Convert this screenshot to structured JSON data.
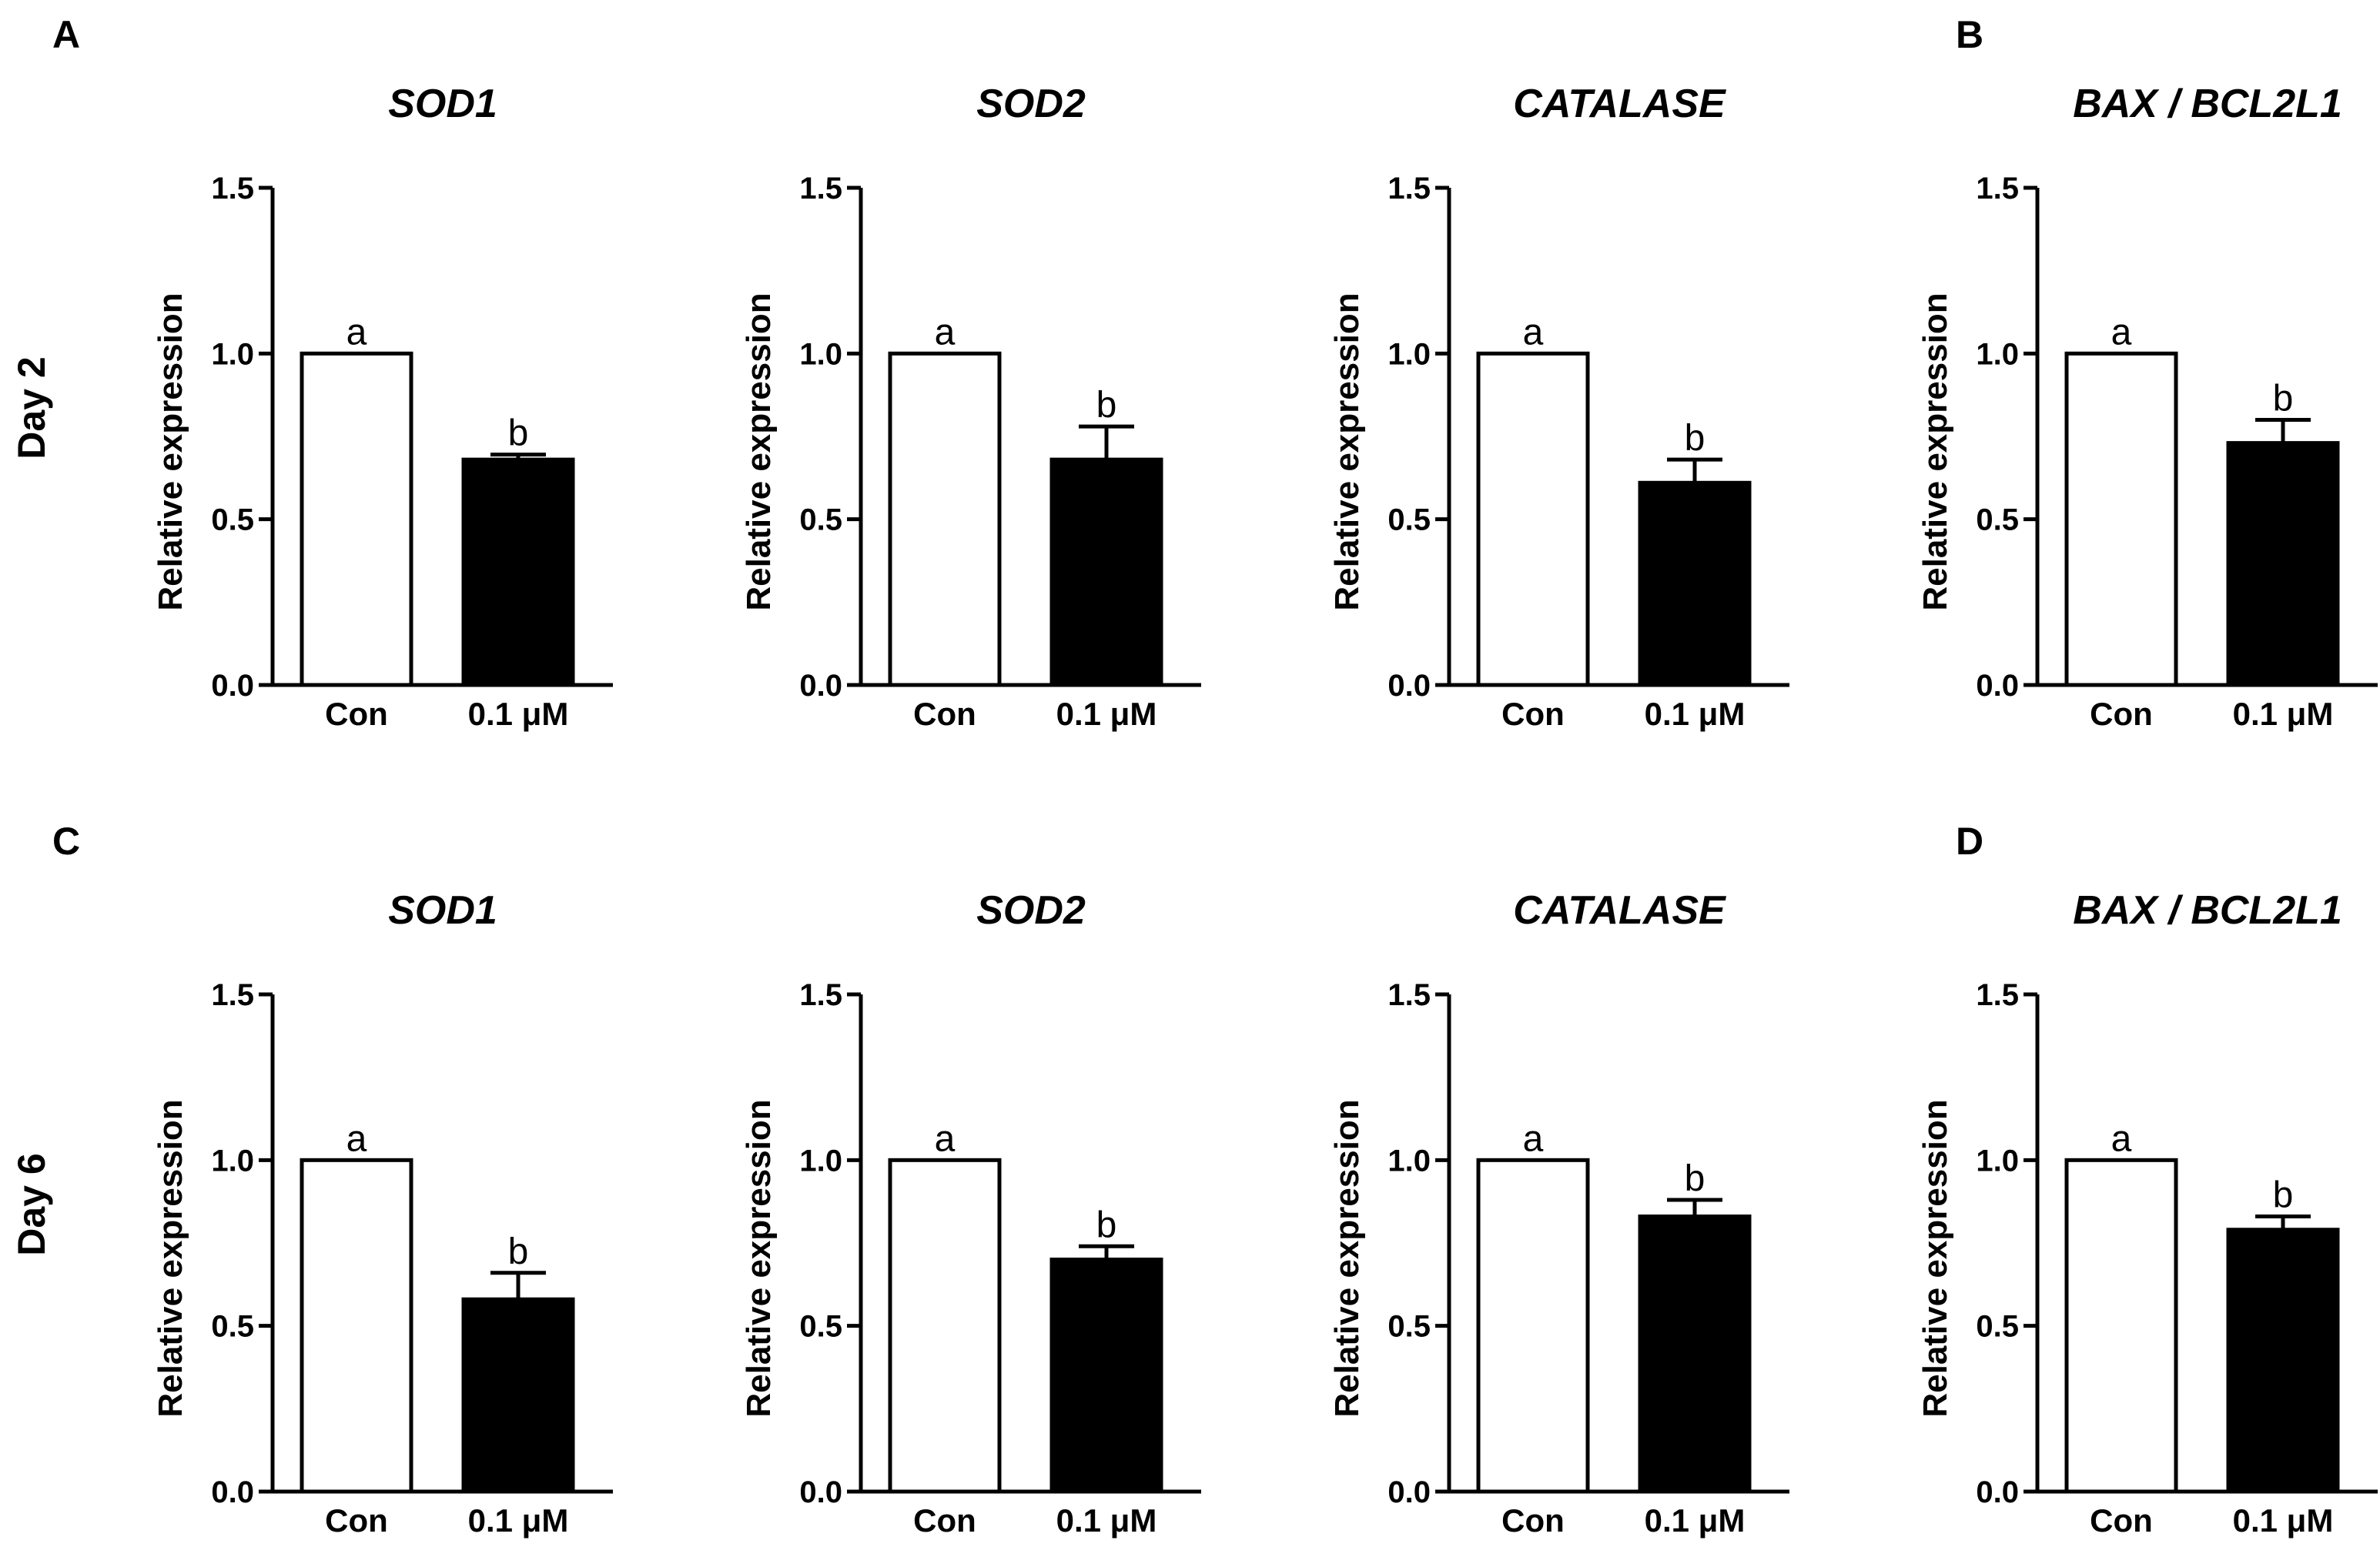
{
  "panel_labels": [
    "A",
    "B",
    "C",
    "D"
  ],
  "row_labels": [
    "Day 2",
    "Day 6"
  ],
  "colors": {
    "control_fill": "#ffffff",
    "treatment_fill": "#000000",
    "stroke": "#000000"
  },
  "chart_data": [
    {
      "type": "bar",
      "row": 0,
      "col": 0,
      "title": "SOD1",
      "ylabel": "Relative expression",
      "ylim": [
        0,
        1.5
      ],
      "yticks": [
        "0.0",
        "0.5",
        "1.0",
        "1.5"
      ],
      "categories": [
        "Con",
        "0.1 μM"
      ],
      "values": [
        1.0,
        0.68
      ],
      "errors": [
        0,
        0.015
      ],
      "letters": [
        "a",
        "b"
      ]
    },
    {
      "type": "bar",
      "row": 0,
      "col": 1,
      "title": "SOD2",
      "ylabel": "Relative expression",
      "ylim": [
        0,
        1.5
      ],
      "yticks": [
        "0.0",
        "0.5",
        "1.0",
        "1.5"
      ],
      "categories": [
        "Con",
        "0.1 μM"
      ],
      "values": [
        1.0,
        0.68
      ],
      "errors": [
        0,
        0.1
      ],
      "letters": [
        "a",
        "b"
      ]
    },
    {
      "type": "bar",
      "row": 0,
      "col": 2,
      "title": "CATALASE",
      "ylabel": "Relative expression",
      "ylim": [
        0,
        1.5
      ],
      "yticks": [
        "0.0",
        "0.5",
        "1.0",
        "1.5"
      ],
      "categories": [
        "Con",
        "0.1 μM"
      ],
      "values": [
        1.0,
        0.61
      ],
      "errors": [
        0,
        0.07
      ],
      "letters": [
        "a",
        "b"
      ]
    },
    {
      "type": "bar",
      "row": 0,
      "col": 3,
      "title": "BAX / BCL2L1",
      "ylabel": "Relative expression",
      "ylim": [
        0,
        1.5
      ],
      "yticks": [
        "0.0",
        "0.5",
        "1.0",
        "1.5"
      ],
      "categories": [
        "Con",
        "0.1 μM"
      ],
      "values": [
        1.0,
        0.73
      ],
      "errors": [
        0,
        0.07
      ],
      "letters": [
        "a",
        "b"
      ]
    },
    {
      "type": "bar",
      "row": 1,
      "col": 0,
      "title": "SOD1",
      "ylabel": "Relative expression",
      "ylim": [
        0,
        1.5
      ],
      "yticks": [
        "0.0",
        "0.5",
        "1.0",
        "1.5"
      ],
      "categories": [
        "Con",
        "0.1 μM"
      ],
      "values": [
        1.0,
        0.58
      ],
      "errors": [
        0,
        0.08
      ],
      "letters": [
        "a",
        "b"
      ]
    },
    {
      "type": "bar",
      "row": 1,
      "col": 1,
      "title": "SOD2",
      "ylabel": "Relative expression",
      "ylim": [
        0,
        1.5
      ],
      "yticks": [
        "0.0",
        "0.5",
        "1.0",
        "1.5"
      ],
      "categories": [
        "Con",
        "0.1 μM"
      ],
      "values": [
        1.0,
        0.7
      ],
      "errors": [
        0,
        0.04
      ],
      "letters": [
        "a",
        "b"
      ]
    },
    {
      "type": "bar",
      "row": 1,
      "col": 2,
      "title": "CATALASE",
      "ylabel": "Relative expression",
      "ylim": [
        0,
        1.5
      ],
      "yticks": [
        "0.0",
        "0.5",
        "1.0",
        "1.5"
      ],
      "categories": [
        "Con",
        "0.1 μM"
      ],
      "values": [
        1.0,
        0.83
      ],
      "errors": [
        0,
        0.05
      ],
      "letters": [
        "a",
        "b"
      ]
    },
    {
      "type": "bar",
      "row": 1,
      "col": 3,
      "title": "BAX / BCL2L1",
      "ylabel": "Relative expression",
      "ylim": [
        0,
        1.5
      ],
      "yticks": [
        "0.0",
        "0.5",
        "1.0",
        "1.5"
      ],
      "categories": [
        "Con",
        "0.1 μM"
      ],
      "values": [
        1.0,
        0.79
      ],
      "errors": [
        0,
        0.04
      ],
      "letters": [
        "a",
        "b"
      ]
    }
  ]
}
